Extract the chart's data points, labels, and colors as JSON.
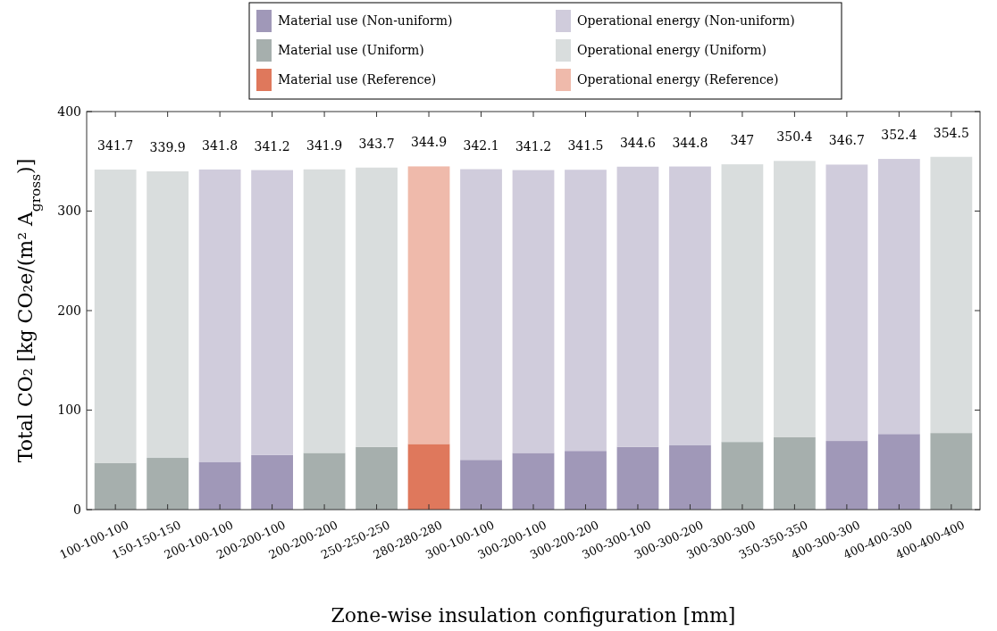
{
  "chart_data": {
    "type": "bar",
    "stacked": true,
    "xlabel": "Zone-wise insulation configuration [mm]",
    "ylabel": "Total CO₂ [kg CO₂e/(m² A$_{gross}$)]",
    "categories": [
      "100-100-100",
      "150-150-150",
      "200-100-100",
      "200-200-100",
      "200-200-200",
      "250-250-250",
      "280-280-280",
      "300-100-100",
      "300-200-100",
      "300-200-200",
      "300-300-100",
      "300-300-200",
      "300-300-300",
      "350-350-350",
      "400-300-300",
      "400-400-300",
      "400-400-400"
    ],
    "series": [
      {
        "name": "Material use (Non-uniform)",
        "color": "#a098b8",
        "values": [
          null,
          null,
          48,
          55,
          null,
          null,
          null,
          50,
          57,
          59,
          63,
          65,
          null,
          null,
          69,
          76,
          null
        ]
      },
      {
        "name": "Material use (Uniform)",
        "color": "#a6afad",
        "values": [
          47,
          52,
          null,
          null,
          57,
          63,
          null,
          null,
          null,
          null,
          null,
          null,
          68,
          73,
          null,
          null,
          77
        ]
      },
      {
        "name": "Material use (Reference)",
        "color": "#df785c",
        "values": [
          null,
          null,
          null,
          null,
          null,
          null,
          66,
          null,
          null,
          null,
          null,
          null,
          null,
          null,
          null,
          null,
          null
        ]
      },
      {
        "name": "Operational energy (Non-uniform)",
        "color": "#d0ccdc",
        "values": [
          null,
          null,
          293.8,
          286.2,
          null,
          null,
          null,
          292.1,
          284.2,
          282.5,
          281.6,
          279.8,
          null,
          null,
          277.7,
          276.4,
          null
        ]
      },
      {
        "name": "Operational energy (Uniform)",
        "color": "#d9dddd",
        "values": [
          294.7,
          287.9,
          null,
          null,
          284.9,
          280.7,
          null,
          null,
          null,
          null,
          null,
          null,
          279,
          277.4,
          null,
          null,
          277.5
        ]
      },
      {
        "name": "Operational energy (Reference)",
        "color": "#efbaab",
        "values": [
          null,
          null,
          null,
          null,
          null,
          null,
          278.9,
          null,
          null,
          null,
          null,
          null,
          null,
          null,
          null,
          null,
          null
        ]
      }
    ],
    "totals": [
      "341.7",
      "339.9",
      "341.8",
      "341.2",
      "341.9",
      "343.7",
      "344.9",
      "342.1",
      "341.2",
      "341.5",
      "344.6",
      "344.8",
      "347",
      "350.4",
      "346.7",
      "352.4",
      "354.5"
    ],
    "ylim": [
      0,
      400
    ],
    "yticks": [
      0,
      100,
      200,
      300,
      400
    ],
    "grid": false,
    "legend": "top"
  }
}
